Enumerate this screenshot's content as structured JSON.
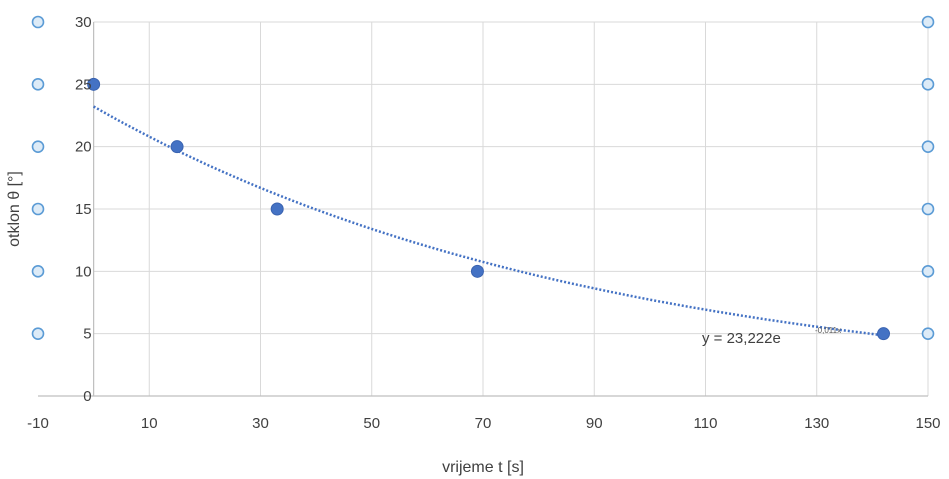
{
  "chart_data": {
    "type": "scatter",
    "xlabel": "vrijeme t [s]",
    "ylabel": "otklon θ [°]",
    "xlim": [
      -10,
      150
    ],
    "ylim": [
      0,
      30
    ],
    "x_ticks": [
      -10,
      10,
      30,
      50,
      70,
      90,
      110,
      130,
      150
    ],
    "y_ticks": [
      0,
      5,
      10,
      15,
      20,
      25,
      30
    ],
    "grid": true,
    "series": [
      {
        "x": [
          0,
          15,
          33,
          69,
          142
        ],
        "y": [
          25,
          20,
          15,
          10,
          5
        ],
        "color": "#4472c4"
      }
    ],
    "trendline": {
      "type": "exponential",
      "a": 23.222,
      "b": -0.011,
      "x_range": [
        0,
        142
      ],
      "color": "#4472c4",
      "equation_prefix": "y = 23,222e",
      "equation_exponent": "-0,011x"
    },
    "selection_handle_color": "#5b9bd5"
  }
}
